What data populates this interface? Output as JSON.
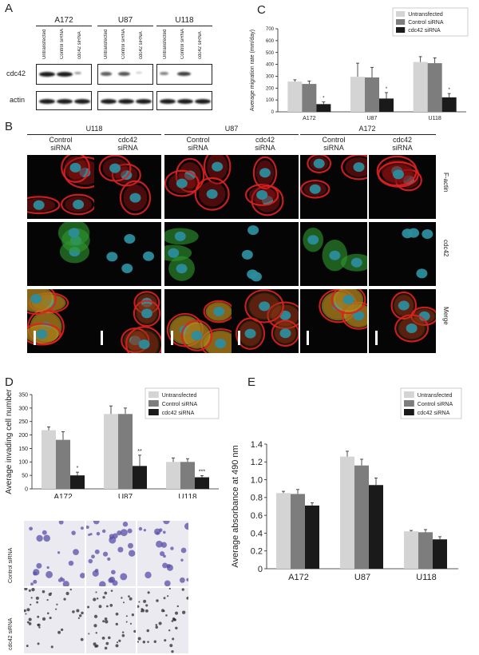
{
  "panels": {
    "A": "A",
    "B": "B",
    "C": "C",
    "D": "D",
    "E": "E"
  },
  "panel_a": {
    "cell_lines": [
      "A172",
      "U87",
      "U118"
    ],
    "lanes": [
      "Untransfected",
      "Control siRNA",
      "cdc42 siRNA"
    ],
    "rows": [
      "cdc42",
      "actin"
    ]
  },
  "panel_b": {
    "cell_lines": [
      "U118",
      "U87",
      "A172"
    ],
    "conditions": [
      "Control siRNA",
      "cdc42 siRNA"
    ],
    "condition_lines": [
      [
        "Control",
        "siRNA"
      ],
      [
        "cdc42",
        "siRNA"
      ]
    ],
    "rows": [
      "F-actin",
      "cdc42",
      "Merge"
    ]
  },
  "panel_d_images": {
    "rows": [
      "Control siRNA",
      "cdc42 siRNA"
    ]
  },
  "colors": {
    "untransfected": "#d4d4d4",
    "control": "#7d7d7d",
    "cdc42": "#1a1a1a"
  },
  "chart_data": [
    {
      "id": "C",
      "type": "bar",
      "categories": [
        "A172",
        "U87",
        "U118"
      ],
      "series": [
        {
          "name": "Untransfected",
          "values": [
            255,
            295,
            420
          ],
          "errors": [
            15,
            115,
            45
          ]
        },
        {
          "name": "Control siRNA",
          "values": [
            235,
            290,
            410
          ],
          "errors": [
            25,
            85,
            45
          ]
        },
        {
          "name": "cdc42 siRNA",
          "values": [
            65,
            112,
            122
          ],
          "errors": [
            18,
            50,
            32
          ]
        }
      ],
      "annotations": [
        "*",
        "*",
        "*"
      ],
      "ylabel": "Average migration rate (mm/day)",
      "ylim": [
        0,
        700
      ],
      "yticks": [
        0,
        100,
        200,
        300,
        400,
        500,
        600,
        700
      ],
      "legend": "top-right"
    },
    {
      "id": "D",
      "type": "bar",
      "categories": [
        "A172",
        "U87",
        "U118"
      ],
      "series": [
        {
          "name": "Untransfected",
          "values": [
            218,
            278,
            100
          ],
          "errors": [
            12,
            30,
            15
          ]
        },
        {
          "name": "Control siRNA",
          "values": [
            182,
            278,
            100
          ],
          "errors": [
            30,
            22,
            12
          ]
        },
        {
          "name": "cdc42 siRNA",
          "values": [
            50,
            85,
            43
          ],
          "errors": [
            12,
            40,
            6
          ]
        }
      ],
      "annotations": [
        "*",
        "**",
        "***"
      ],
      "ylabel": "Average invading cell number",
      "ylim": [
        0,
        350
      ],
      "yticks": [
        0,
        50,
        100,
        150,
        200,
        250,
        300,
        350
      ],
      "legend": "top-right"
    },
    {
      "id": "E",
      "type": "bar",
      "categories": [
        "A172",
        "U87",
        "U118"
      ],
      "series": [
        {
          "name": "Untransfected",
          "values": [
            0.85,
            1.26,
            0.42
          ],
          "errors": [
            0.02,
            0.06,
            0.01
          ]
        },
        {
          "name": "Control siRNA",
          "values": [
            0.84,
            1.16,
            0.41
          ],
          "errors": [
            0.05,
            0.07,
            0.03
          ]
        },
        {
          "name": "cdc42 siRNA",
          "values": [
            0.71,
            0.94,
            0.33
          ],
          "errors": [
            0.03,
            0.08,
            0.03
          ]
        }
      ],
      "ylabel": "Average absorbance at 490 nm",
      "ylim": [
        0,
        1.4
      ],
      "yticks": [
        "0",
        "0.2",
        "0.4",
        "0.6",
        "0.8",
        "1.0",
        "1.2",
        "1.4"
      ],
      "legend": "top-right"
    }
  ]
}
